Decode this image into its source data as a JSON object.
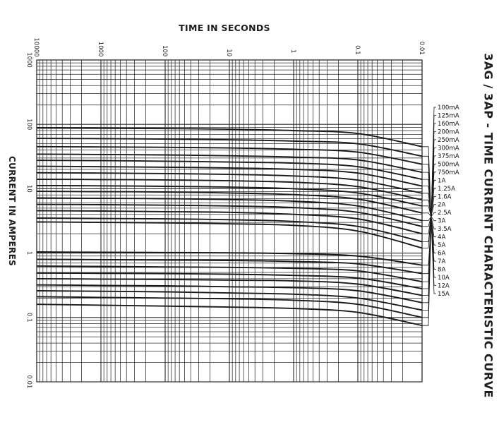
{
  "page": {
    "side_title": "3AG / 3AP - TIME CURRENT CHARACTERISTIC CURVE"
  },
  "chart_data": {
    "type": "line",
    "title": "",
    "xlabel": "TIME IN SECONDS",
    "ylabel": "CURRENT IN AMPERES",
    "x_scale": "log",
    "y_scale": "log",
    "x_reversed": true,
    "y_reversed": true,
    "xlim": [
      0.01,
      10000
    ],
    "ylim": [
      0.01,
      1000
    ],
    "x_tick_labels": [
      {
        "value": 0.01,
        "label": "0.01"
      },
      {
        "value": 0.1,
        "label": "0.1"
      },
      {
        "value": 1,
        "label": "1"
      },
      {
        "value": 10,
        "label": "10"
      },
      {
        "value": 100,
        "label": "100"
      },
      {
        "value": 1000,
        "label": "1000"
      },
      {
        "value": 10000,
        "label": "10000"
      }
    ],
    "y_tick_labels": [
      {
        "value": 0.01,
        "label": "0.01"
      },
      {
        "value": 0.1,
        "label": "0.1"
      },
      {
        "value": 1,
        "label": "1"
      },
      {
        "value": 10,
        "label": "10"
      },
      {
        "value": 100,
        "label": "100"
      },
      {
        "value": 1000,
        "label": "1000"
      }
    ],
    "grid": true,
    "line_color": "#1a1a1a",
    "x": [
      0.01,
      0.1,
      1,
      10,
      100,
      1000,
      10000
    ],
    "series": [
      {
        "name": "100mA",
        "values": [
          0.075,
          0.12,
          0.138,
          0.145,
          0.15,
          0.155,
          0.16
        ]
      },
      {
        "name": "125mA",
        "values": [
          0.1,
          0.16,
          0.185,
          0.195,
          0.2,
          0.205,
          0.21
        ]
      },
      {
        "name": "160mA",
        "values": [
          0.13,
          0.2,
          0.23,
          0.24,
          0.25,
          0.255,
          0.26
        ]
      },
      {
        "name": "200mA",
        "values": [
          0.17,
          0.26,
          0.29,
          0.3,
          0.31,
          0.315,
          0.32
        ]
      },
      {
        "name": "250mA",
        "values": [
          0.22,
          0.33,
          0.37,
          0.38,
          0.39,
          0.395,
          0.4
        ]
      },
      {
        "name": "300mA",
        "values": [
          0.28,
          0.41,
          0.45,
          0.47,
          0.48,
          0.485,
          0.49
        ]
      },
      {
        "name": "375mA",
        "values": [
          0.36,
          0.53,
          0.58,
          0.6,
          0.61,
          0.62,
          0.63
        ]
      },
      {
        "name": "500mA",
        "values": [
          0.48,
          0.68,
          0.74,
          0.77,
          0.78,
          0.79,
          0.8
        ]
      },
      {
        "name": "750mA",
        "values": [
          0.65,
          0.9,
          0.98,
          1.01,
          1.02,
          1.03,
          1.04
        ]
      },
      {
        "name": "1A",
        "values": [
          1.2,
          2.2,
          2.7,
          2.85,
          2.95,
          3.0,
          3.05
        ]
      },
      {
        "name": "1.25A",
        "values": [
          1.5,
          2.6,
          3.1,
          3.3,
          3.4,
          3.45,
          3.5
        ]
      },
      {
        "name": "1.6A",
        "values": [
          2.0,
          3.4,
          4.0,
          4.3,
          4.4,
          4.5,
          4.55
        ]
      },
      {
        "name": "2A",
        "values": [
          2.6,
          4.3,
          5.1,
          5.4,
          5.55,
          5.65,
          5.7
        ]
      },
      {
        "name": "2.5A",
        "values": [
          3.2,
          5.4,
          6.4,
          6.8,
          7.0,
          7.1,
          7.2
        ]
      },
      {
        "name": "3A",
        "values": [
          4.2,
          6.9,
          8.1,
          8.6,
          8.9,
          9.0,
          9.1
        ]
      },
      {
        "name": "3.5A",
        "values": [
          5.4,
          8.6,
          10.0,
          10.6,
          10.9,
          11.1,
          11.2
        ]
      },
      {
        "name": "4A",
        "values": [
          6.7,
          10.8,
          12.6,
          13.3,
          13.7,
          13.9,
          14.0
        ]
      },
      {
        "name": "5A",
        "values": [
          8.5,
          13.6,
          15.8,
          16.7,
          17.2,
          17.5,
          17.7
        ]
      },
      {
        "name": "6A",
        "values": [
          11.0,
          17.5,
          20.0,
          21.0,
          21.6,
          22.0,
          22.3
        ]
      },
      {
        "name": "7A",
        "values": [
          14.0,
          22.0,
          25.0,
          26.0,
          26.8,
          27.3,
          27.6
        ]
      },
      {
        "name": "8A",
        "values": [
          18.0,
          28.0,
          31.0,
          32.5,
          33.5,
          34.0,
          34.5
        ]
      },
      {
        "name": "10A",
        "values": [
          24.0,
          37.0,
          41.0,
          43.0,
          44.0,
          44.6,
          45.0
        ]
      },
      {
        "name": "12A",
        "values": [
          32.0,
          50.0,
          55.0,
          57.5,
          59.0,
          60.0,
          60.5
        ]
      },
      {
        "name": "15A",
        "values": [
          45.0,
          72.0,
          80.0,
          84.0,
          86.0,
          87.0,
          88.0
        ]
      }
    ]
  }
}
